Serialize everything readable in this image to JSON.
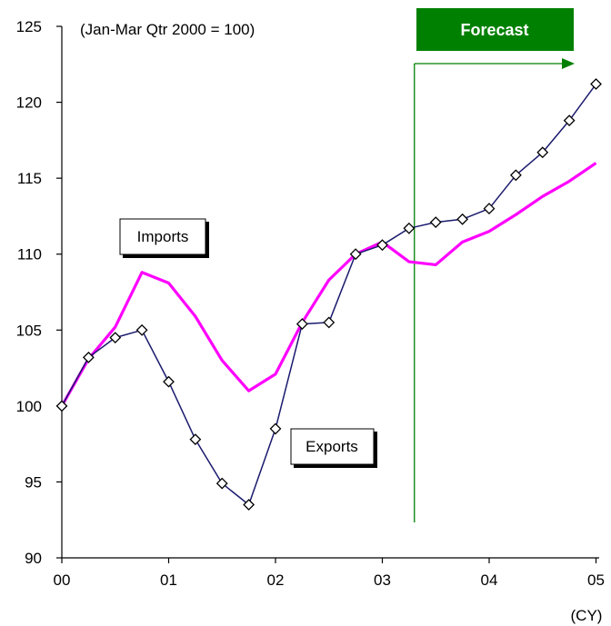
{
  "chart_data": {
    "type": "line",
    "note": "(Jan-Mar Qtr 2000 = 100)",
    "xunit": "(CY)",
    "forecast_label": "Forecast",
    "forecast_start_x": 3.3,
    "xlim": [
      0,
      5.05
    ],
    "ylim": [
      90,
      125
    ],
    "x_ticks": [
      {
        "value": 0,
        "label": "00"
      },
      {
        "value": 1,
        "label": "01"
      },
      {
        "value": 2,
        "label": "02"
      },
      {
        "value": 3,
        "label": "03"
      },
      {
        "value": 4,
        "label": "04"
      },
      {
        "value": 5,
        "label": "05"
      }
    ],
    "y_ticks": [
      {
        "value": 90,
        "label": "90"
      },
      {
        "value": 95,
        "label": "95"
      },
      {
        "value": 100,
        "label": "100"
      },
      {
        "value": 105,
        "label": "105"
      },
      {
        "value": 110,
        "label": "110"
      },
      {
        "value": 115,
        "label": "115"
      },
      {
        "value": 120,
        "label": "120"
      },
      {
        "value": 125,
        "label": "125"
      }
    ],
    "series": [
      {
        "name": "Exports",
        "color": "#1a1a6e",
        "marker": "diamond",
        "x": [
          0,
          0.25,
          0.5,
          0.75,
          1.0,
          1.25,
          1.5,
          1.75,
          2.0,
          2.25,
          2.5,
          2.75,
          3.0,
          3.25,
          3.5,
          3.75,
          4.0,
          4.25,
          4.5,
          4.75,
          5.0
        ],
        "values": [
          100.0,
          103.2,
          104.5,
          105.0,
          101.6,
          97.8,
          94.9,
          93.5,
          98.5,
          105.4,
          105.5,
          110.0,
          110.6,
          111.7,
          112.1,
          112.3,
          113.0,
          115.2,
          116.7,
          118.8,
          121.2
        ]
      },
      {
        "name": "Imports",
        "color": "#ff00ff",
        "marker": "none",
        "x": [
          0,
          0.25,
          0.5,
          0.75,
          1.0,
          1.25,
          1.5,
          1.75,
          2.0,
          2.25,
          2.5,
          2.75,
          3.0,
          3.25,
          3.5,
          3.75,
          4.0,
          4.25,
          4.5,
          4.75,
          5.0
        ],
        "values": [
          100.0,
          103.1,
          105.2,
          108.8,
          108.1,
          105.9,
          103.0,
          101.0,
          102.1,
          105.5,
          108.3,
          110.0,
          110.8,
          109.5,
          109.3,
          110.8,
          111.5,
          112.6,
          113.8,
          114.8,
          116.0
        ]
      }
    ],
    "colors": {
      "forecast_box": "#008000",
      "forecast_line": "#008000",
      "axis": "#000000"
    }
  }
}
